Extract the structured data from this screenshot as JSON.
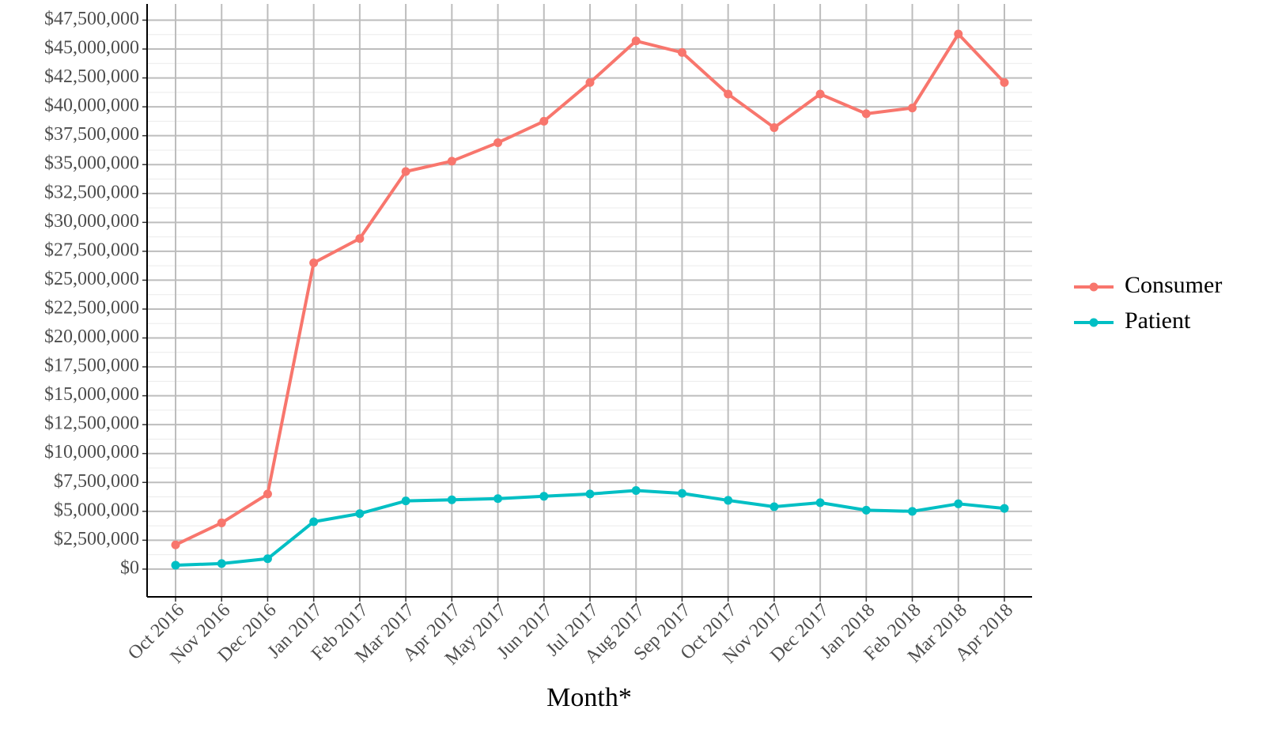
{
  "chart_data": {
    "type": "line",
    "x_label": "Month*",
    "categories": [
      "Oct 2016",
      "Nov 2016",
      "Dec 2016",
      "Jan 2017",
      "Feb 2017",
      "Mar 2017",
      "Apr 2017",
      "May 2017",
      "Jun 2017",
      "Jul 2017",
      "Aug 2017",
      "Sep 2017",
      "Oct 2017",
      "Nov 2017",
      "Dec 2017",
      "Jan 2018",
      "Feb 2018",
      "Mar 2018",
      "Apr 2018"
    ],
    "series": [
      {
        "name": "Consumer",
        "color": "#f8766d",
        "values": [
          2100000,
          4000000,
          6500000,
          26500000,
          28600000,
          34400000,
          35300000,
          36900000,
          38750000,
          42100000,
          45700000,
          44700000,
          41100000,
          38200000,
          41100000,
          39400000,
          39900000,
          46300000,
          42100000
        ]
      },
      {
        "name": "Patient",
        "color": "#00bfc4",
        "values": [
          340000,
          480000,
          900000,
          4100000,
          4800000,
          5900000,
          6000000,
          6100000,
          6300000,
          6500000,
          6800000,
          6550000,
          5950000,
          5400000,
          5750000,
          5100000,
          5000000,
          5650000,
          5250000
        ]
      }
    ],
    "ylim": [
      -2400000,
      48900000
    ],
    "yticks": [
      {
        "value": 0,
        "label": "$0"
      },
      {
        "value": 2500000,
        "label": "$2,500,000"
      },
      {
        "value": 5000000,
        "label": "$5,000,000"
      },
      {
        "value": 7500000,
        "label": "$7,500,000"
      },
      {
        "value": 10000000,
        "label": "$10,000,000"
      },
      {
        "value": 12500000,
        "label": "$12,500,000"
      },
      {
        "value": 15000000,
        "label": "$15,000,000"
      },
      {
        "value": 17500000,
        "label": "$17,500,000"
      },
      {
        "value": 20000000,
        "label": "$20,000,000"
      },
      {
        "value": 22500000,
        "label": "$22,500,000"
      },
      {
        "value": 25000000,
        "label": "$25,000,000"
      },
      {
        "value": 27500000,
        "label": "$27,500,000"
      },
      {
        "value": 30000000,
        "label": "$30,000,000"
      },
      {
        "value": 32500000,
        "label": "$32,500,000"
      },
      {
        "value": 35000000,
        "label": "$35,000,000"
      },
      {
        "value": 37500000,
        "label": "$37,500,000"
      },
      {
        "value": 40000000,
        "label": "$40,000,000"
      },
      {
        "value": 42500000,
        "label": "$42,500,000"
      },
      {
        "value": 45000000,
        "label": "$45,000,000"
      },
      {
        "value": 47500000,
        "label": "$47,500,000"
      }
    ],
    "grid": true,
    "legend": "right"
  }
}
